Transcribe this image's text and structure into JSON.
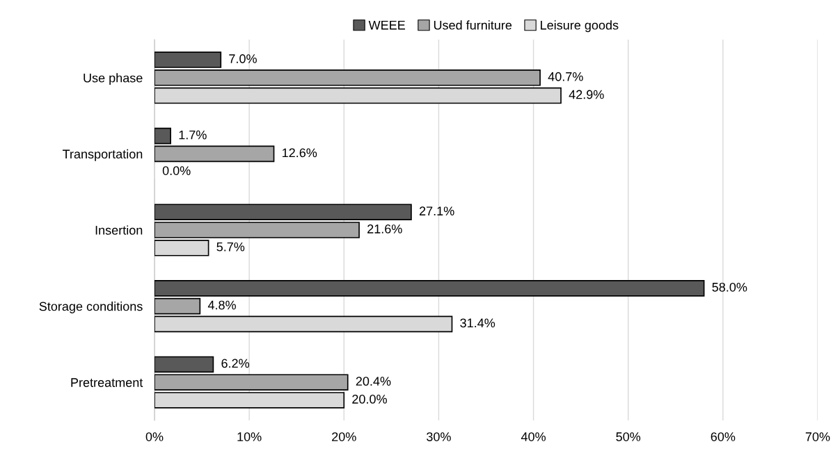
{
  "chart_data": {
    "type": "bar",
    "orientation": "horizontal",
    "categories": [
      "Use phase",
      "Transportation",
      "Insertion",
      "Storage conditions",
      "Pretreatment"
    ],
    "series": [
      {
        "name": "WEEE",
        "color": "#595959",
        "values": [
          7.0,
          1.7,
          27.1,
          58.0,
          6.2
        ],
        "value_labels": [
          "7.0%",
          "1.7%",
          "27.1%",
          "58.0%",
          "6.2%"
        ]
      },
      {
        "name": "Used furniture",
        "color": "#a6a6a6",
        "values": [
          40.7,
          12.6,
          21.6,
          4.8,
          20.4
        ],
        "value_labels": [
          "40.7%",
          "12.6%",
          "21.6%",
          "4.8%",
          "20.4%"
        ]
      },
      {
        "name": "Leisure goods",
        "color": "#d9d9d9",
        "values": [
          42.9,
          0.0,
          5.7,
          31.4,
          20.0
        ],
        "value_labels": [
          "42.9%",
          "0.0%",
          "5.7%",
          "31.4%",
          "20.0%"
        ]
      }
    ],
    "xlim": [
      0,
      70
    ],
    "xticks": [
      {
        "value": 0,
        "label": "0%"
      },
      {
        "value": 10,
        "label": "10%"
      },
      {
        "value": 20,
        "label": "20%"
      },
      {
        "value": 30,
        "label": "30%"
      },
      {
        "value": 40,
        "label": "40%"
      },
      {
        "value": 50,
        "label": "50%"
      },
      {
        "value": 60,
        "label": "60%"
      },
      {
        "value": 70,
        "label": "70%"
      }
    ],
    "grid": "x",
    "legend": "top"
  }
}
